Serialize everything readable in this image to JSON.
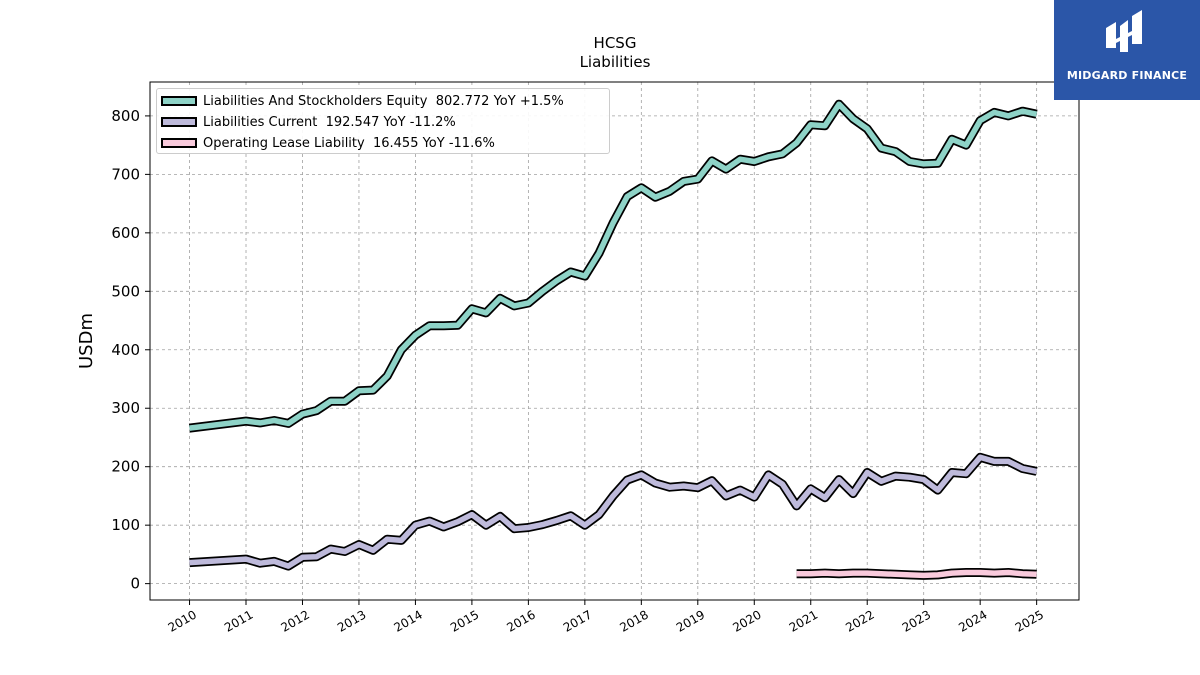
{
  "brand": {
    "name": "MIDGARD FINANCE",
    "logo_icon": "midgard-logo-icon",
    "color": "#2b56a8"
  },
  "chart_data": {
    "type": "line",
    "title": "HCSG",
    "subtitle": "Liabilities",
    "ylabel": "USDm",
    "xlabel": "",
    "ylim": [
      -28,
      858
    ],
    "xlim": [
      2009.3,
      2025.75
    ],
    "yticks": [
      0,
      100,
      200,
      300,
      400,
      500,
      600,
      700,
      800
    ],
    "xticks": [
      2010,
      2011,
      2012,
      2013,
      2014,
      2015,
      2016,
      2017,
      2018,
      2019,
      2020,
      2021,
      2022,
      2023,
      2024,
      2025
    ],
    "grid": true,
    "legend_position": "upper-left",
    "series": [
      {
        "name": "Liabilities And Stockholders Equity",
        "legend_label": "Liabilities And Stockholders Equity  802.772 YoY +1.5%",
        "color": "#8ed3c7",
        "x": [
          2010.0,
          2011.0,
          2011.25,
          2011.5,
          2011.75,
          2012.0,
          2012.25,
          2012.5,
          2012.75,
          2013.0,
          2013.25,
          2013.5,
          2013.75,
          2014.0,
          2014.25,
          2014.5,
          2014.75,
          2015.0,
          2015.25,
          2015.5,
          2015.75,
          2016.0,
          2016.25,
          2016.5,
          2016.75,
          2017.0,
          2017.25,
          2017.5,
          2017.75,
          2018.0,
          2018.25,
          2018.5,
          2018.75,
          2019.0,
          2019.25,
          2019.5,
          2019.75,
          2020.0,
          2020.25,
          2020.5,
          2020.75,
          2021.0,
          2021.25,
          2021.5,
          2021.75,
          2022.0,
          2022.25,
          2022.5,
          2022.75,
          2023.0,
          2023.25,
          2023.5,
          2023.75,
          2024.0,
          2024.25,
          2024.5,
          2024.75,
          2025.0
        ],
        "values": [
          266,
          278,
          275,
          279,
          274,
          290,
          296,
          312,
          312,
          330,
          331,
          355,
          400,
          425,
          441,
          441,
          442,
          470,
          463,
          488,
          475,
          480,
          500,
          518,
          533,
          526,
          565,
          617,
          662,
          677,
          661,
          671,
          688,
          692,
          723,
          709,
          726,
          722,
          730,
          735,
          754,
          785,
          783,
          820,
          795,
          778,
          745,
          739,
          722,
          718,
          719,
          760,
          750,
          792,
          806,
          800,
          808,
          803
        ]
      },
      {
        "name": "Liabilities Current",
        "legend_label": "Liabilities Current  192.547 YoY -11.2%",
        "color": "#bebadb",
        "x": [
          2010.0,
          2011.0,
          2011.25,
          2011.5,
          2011.75,
          2012.0,
          2012.25,
          2012.5,
          2012.75,
          2013.0,
          2013.25,
          2013.5,
          2013.75,
          2014.0,
          2014.25,
          2014.5,
          2014.75,
          2015.0,
          2015.25,
          2015.5,
          2015.75,
          2016.0,
          2016.25,
          2016.5,
          2016.75,
          2017.0,
          2017.25,
          2017.5,
          2017.75,
          2018.0,
          2018.25,
          2018.5,
          2018.75,
          2019.0,
          2019.25,
          2019.5,
          2019.75,
          2020.0,
          2020.25,
          2020.5,
          2020.75,
          2021.0,
          2021.25,
          2021.5,
          2021.75,
          2022.0,
          2022.25,
          2022.5,
          2022.75,
          2023.0,
          2023.25,
          2023.5,
          2023.75,
          2024.0,
          2024.25,
          2024.5,
          2024.75,
          2025.0
        ],
        "values": [
          36,
          42,
          35,
          38,
          30,
          45,
          46,
          59,
          55,
          67,
          57,
          76,
          74,
          100,
          107,
          97,
          106,
          118,
          100,
          115,
          94,
          96,
          101,
          108,
          116,
          100,
          118,
          150,
          177,
          186,
          172,
          165,
          167,
          164,
          176,
          150,
          160,
          148,
          186,
          170,
          133,
          162,
          147,
          178,
          154,
          190,
          175,
          184,
          182,
          178,
          160,
          190,
          188,
          216,
          209,
          209,
          197,
          192
        ]
      },
      {
        "name": "Operating Lease Liability",
        "legend_label": "Operating Lease Liability  16.455 YoY -11.6%",
        "color": "#f9cadc",
        "x": [
          2020.75,
          2021.0,
          2021.25,
          2021.5,
          2021.75,
          2022.0,
          2022.25,
          2022.5,
          2022.75,
          2023.0,
          2023.25,
          2023.5,
          2023.75,
          2024.0,
          2024.25,
          2024.5,
          2024.75,
          2025.0
        ],
        "values": [
          17,
          17,
          18,
          17,
          18,
          18,
          17,
          16,
          15,
          14,
          15,
          18,
          19,
          19,
          18,
          19,
          17,
          16
        ]
      }
    ]
  }
}
